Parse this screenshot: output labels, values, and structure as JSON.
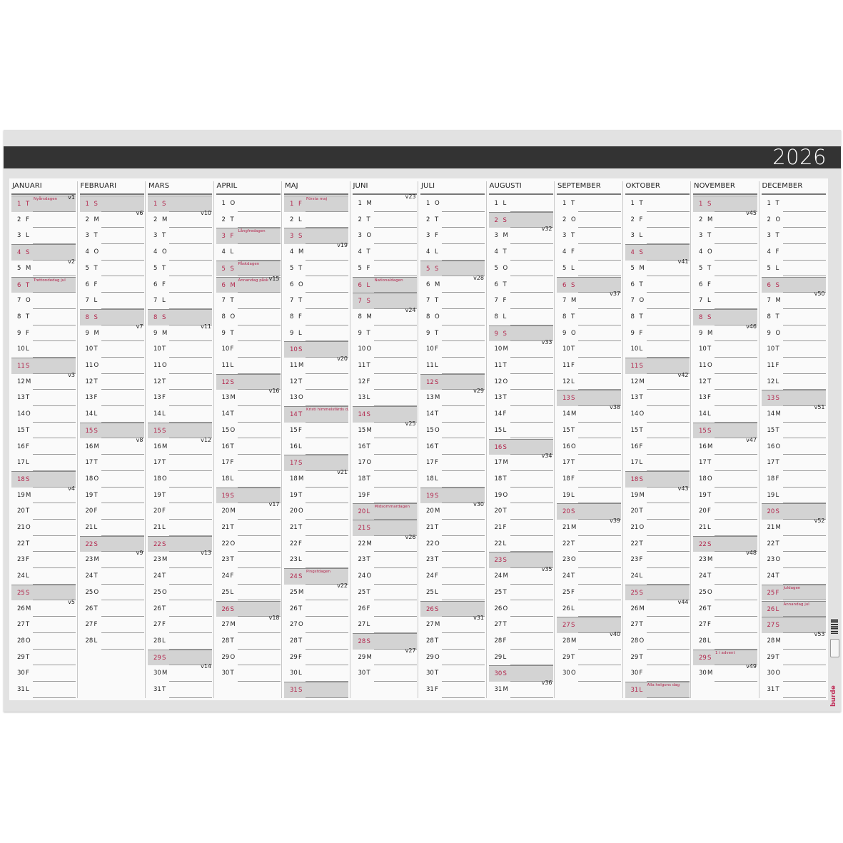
{
  "year": "2026",
  "brand": "burde",
  "colors": {
    "holiday_text": "#b3254c",
    "shade": "#d3d3d3",
    "title_bar": "#333333"
  },
  "months": [
    {
      "name": "JANUARI",
      "days": [
        "T",
        "F",
        "L",
        "S",
        "M",
        "T",
        "O",
        "T",
        "F",
        "L",
        "S",
        "M",
        "T",
        "O",
        "T",
        "F",
        "L",
        "S",
        "M",
        "T",
        "O",
        "T",
        "F",
        "L",
        "S",
        "M",
        "T",
        "O",
        "T",
        "F",
        "L"
      ],
      "weeks": {
        "1": "v1",
        "5": "v2",
        "12": "v3",
        "19": "v4",
        "26": "v5"
      },
      "holidays": {
        "1": "Nyårsdagen",
        "6": "Trettondedag jul"
      }
    },
    {
      "name": "FEBRUARI",
      "days": [
        "S",
        "M",
        "T",
        "O",
        "T",
        "F",
        "L",
        "S",
        "M",
        "T",
        "O",
        "T",
        "F",
        "L",
        "S",
        "M",
        "T",
        "O",
        "T",
        "F",
        "L",
        "S",
        "M",
        "T",
        "O",
        "T",
        "F",
        "L"
      ],
      "weeks": {
        "2": "v6",
        "9": "v7",
        "16": "v8",
        "23": "v9"
      },
      "holidays": {}
    },
    {
      "name": "MARS",
      "days": [
        "S",
        "M",
        "T",
        "O",
        "T",
        "F",
        "L",
        "S",
        "M",
        "T",
        "O",
        "T",
        "F",
        "L",
        "S",
        "M",
        "T",
        "O",
        "T",
        "F",
        "L",
        "S",
        "M",
        "T",
        "O",
        "T",
        "F",
        "L",
        "S",
        "M",
        "T"
      ],
      "weeks": {
        "2": "v10",
        "9": "v11",
        "16": "v12",
        "23": "v13",
        "30": "v14"
      },
      "holidays": {}
    },
    {
      "name": "APRIL",
      "days": [
        "O",
        "T",
        "F",
        "L",
        "S",
        "M",
        "T",
        "O",
        "T",
        "F",
        "L",
        "S",
        "M",
        "T",
        "O",
        "T",
        "F",
        "L",
        "S",
        "M",
        "T",
        "O",
        "T",
        "F",
        "L",
        "S",
        "M",
        "T",
        "O",
        "T"
      ],
      "weeks": {
        "6": "v15",
        "13": "v16",
        "20": "v17",
        "27": "v18"
      },
      "holidays": {
        "3": "Långfredagen",
        "5": "Påskdagen",
        "6": "Annandag påsk"
      }
    },
    {
      "name": "MAJ",
      "days": [
        "F",
        "L",
        "S",
        "M",
        "T",
        "O",
        "T",
        "F",
        "L",
        "S",
        "M",
        "T",
        "O",
        "T",
        "F",
        "L",
        "S",
        "M",
        "T",
        "O",
        "T",
        "F",
        "L",
        "S",
        "M",
        "T",
        "O",
        "T",
        "F",
        "L",
        "S"
      ],
      "weeks": {
        "4": "v19",
        "11": "v20",
        "18": "v21",
        "25": "v22"
      },
      "holidays": {
        "1": "Första maj",
        "14": "Kristi himmelsfärds d.",
        "24": "Pingstdagen"
      }
    },
    {
      "name": "JUNI",
      "days": [
        "M",
        "T",
        "O",
        "T",
        "F",
        "L",
        "S",
        "M",
        "T",
        "O",
        "T",
        "F",
        "L",
        "S",
        "M",
        "T",
        "O",
        "T",
        "F",
        "L",
        "S",
        "M",
        "T",
        "O",
        "T",
        "F",
        "L",
        "S",
        "M",
        "T"
      ],
      "weeks": {
        "1": "v23",
        "8": "v24",
        "15": "v25",
        "22": "v26",
        "29": "v27"
      },
      "holidays": {
        "6": "Nationaldagen",
        "20": "Midsommardagen"
      }
    },
    {
      "name": "JULI",
      "days": [
        "O",
        "T",
        "F",
        "L",
        "S",
        "M",
        "T",
        "O",
        "T",
        "F",
        "L",
        "S",
        "M",
        "T",
        "O",
        "T",
        "F",
        "L",
        "S",
        "M",
        "T",
        "O",
        "T",
        "F",
        "L",
        "S",
        "M",
        "T",
        "O",
        "T",
        "F"
      ],
      "weeks": {
        "6": "v28",
        "13": "v29",
        "20": "v30",
        "27": "v31"
      },
      "holidays": {}
    },
    {
      "name": "AUGUSTI",
      "days": [
        "L",
        "S",
        "M",
        "T",
        "O",
        "T",
        "F",
        "L",
        "S",
        "M",
        "T",
        "O",
        "T",
        "F",
        "L",
        "S",
        "M",
        "T",
        "O",
        "T",
        "F",
        "L",
        "S",
        "M",
        "T",
        "O",
        "T",
        "F",
        "L",
        "S",
        "M"
      ],
      "weeks": {
        "3": "v32",
        "10": "v33",
        "17": "v34",
        "24": "v35",
        "31": "v36"
      },
      "holidays": {}
    },
    {
      "name": "SEPTEMBER",
      "days": [
        "T",
        "O",
        "T",
        "F",
        "L",
        "S",
        "M",
        "T",
        "O",
        "T",
        "F",
        "L",
        "S",
        "M",
        "T",
        "O",
        "T",
        "F",
        "L",
        "S",
        "M",
        "T",
        "O",
        "T",
        "F",
        "L",
        "S",
        "M",
        "T",
        "O"
      ],
      "weeks": {
        "7": "v37",
        "14": "v38",
        "21": "v39",
        "28": "v40"
      },
      "holidays": {}
    },
    {
      "name": "OKTOBER",
      "days": [
        "T",
        "F",
        "L",
        "S",
        "M",
        "T",
        "O",
        "T",
        "F",
        "L",
        "S",
        "M",
        "T",
        "O",
        "T",
        "F",
        "L",
        "S",
        "M",
        "T",
        "O",
        "T",
        "F",
        "L",
        "S",
        "M",
        "T",
        "O",
        "T",
        "F",
        "L"
      ],
      "weeks": {
        "5": "v41",
        "12": "v42",
        "19": "v43",
        "26": "v44"
      },
      "holidays": {
        "31": "Alla helgons dag"
      }
    },
    {
      "name": "NOVEMBER",
      "days": [
        "S",
        "M",
        "T",
        "O",
        "T",
        "F",
        "L",
        "S",
        "M",
        "T",
        "O",
        "T",
        "F",
        "L",
        "S",
        "M",
        "T",
        "O",
        "T",
        "F",
        "L",
        "S",
        "M",
        "T",
        "O",
        "T",
        "F",
        "L",
        "S",
        "M"
      ],
      "weeks": {
        "2": "v45",
        "9": "v46",
        "16": "v47",
        "23": "v48",
        "30": "v49"
      },
      "holidays": {
        "29": "1 i advent"
      }
    },
    {
      "name": "DECEMBER",
      "days": [
        "T",
        "O",
        "T",
        "F",
        "L",
        "S",
        "M",
        "T",
        "O",
        "T",
        "F",
        "L",
        "S",
        "M",
        "T",
        "O",
        "T",
        "F",
        "L",
        "S",
        "M",
        "T",
        "O",
        "T",
        "F",
        "L",
        "S",
        "M",
        "T",
        "O",
        "T"
      ],
      "weeks": {
        "7": "v50",
        "14": "v51",
        "21": "v52",
        "28": "v53"
      },
      "holidays": {
        "25": "Juldagen",
        "26": "Annandag jul"
      }
    }
  ]
}
